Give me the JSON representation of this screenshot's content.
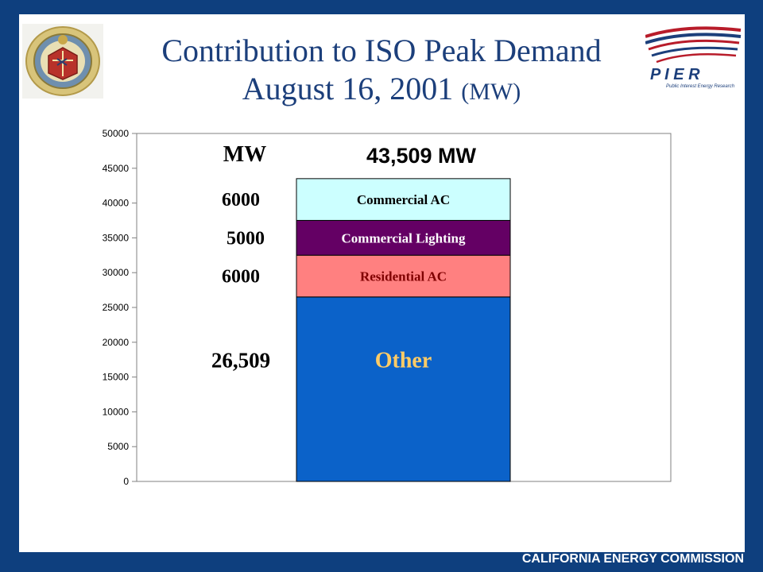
{
  "title": {
    "line1": "Contribution to ISO Peak Demand",
    "line2_main": "August 16, 2001",
    "line2_units": "(MW)"
  },
  "footer": "CALIFORNIA ENERGY COMMISSION",
  "logo": {
    "text": "P I E R",
    "subtitle": "Public Interest Energy Research"
  },
  "colors": {
    "frame": "#0e3f7e",
    "title": "#1c3f7b",
    "other": "#0b62c9",
    "residential_ac": "#ff8080",
    "commercial_lighting": "#640064",
    "commercial_ac": "#ccffff"
  },
  "chart_data": {
    "type": "bar",
    "stacked": true,
    "ylim": [
      0,
      50000
    ],
    "yticks": [
      0,
      5000,
      10000,
      15000,
      20000,
      25000,
      30000,
      35000,
      40000,
      45000,
      50000
    ],
    "total_label": "43,509 MW",
    "units_label": "MW",
    "grid": false,
    "series": [
      {
        "name": "Other",
        "value": 26509,
        "value_label": "26,509",
        "color": "#0b62c9",
        "text_color": "#ffcc66"
      },
      {
        "name": "Residential AC",
        "value": 6000,
        "value_label": "6000",
        "color": "#ff8080",
        "text_color": "#800000"
      },
      {
        "name": "Commercial Lighting",
        "value": 5000,
        "value_label": "5000",
        "color": "#640064",
        "text_color": "#ffffff"
      },
      {
        "name": "Commercial AC",
        "value": 6000,
        "value_label": "6000",
        "color": "#ccffff",
        "text_color": "#000000"
      }
    ]
  }
}
